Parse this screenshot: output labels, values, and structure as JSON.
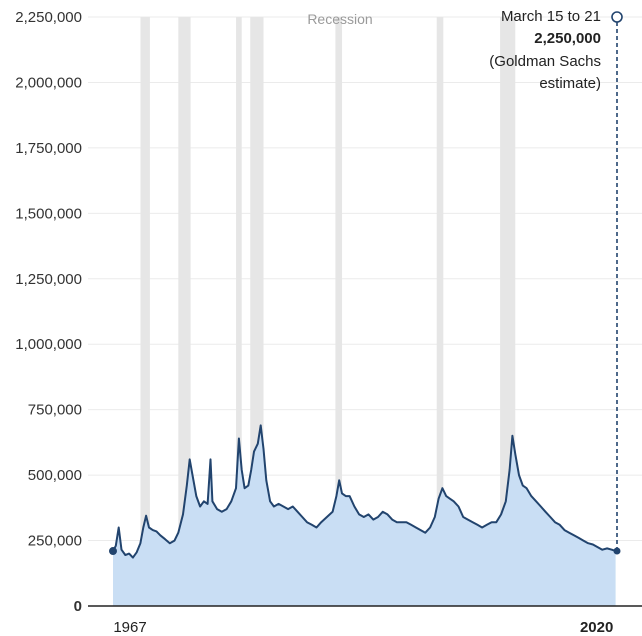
{
  "chart_data": {
    "type": "area",
    "title": "",
    "xlabel": "",
    "ylabel": "",
    "ylim": [
      0,
      2250000
    ],
    "xlim": [
      1967,
      2020.25
    ],
    "y_ticks": [
      0,
      250000,
      500000,
      750000,
      1000000,
      1250000,
      1500000,
      1750000,
      2000000,
      2250000
    ],
    "y_tick_labels": [
      "0",
      "250,000",
      "500,000",
      "750,000",
      "1,000,000",
      "1,250,000",
      "1,500,000",
      "1,750,000",
      "2,000,000",
      "2,250,000"
    ],
    "x_tick_labels": [
      {
        "value": 1967,
        "label": "1967"
      },
      {
        "value": 2020,
        "label": "2020"
      }
    ],
    "grid": true,
    "recession_label": "Recession",
    "recessions": [
      [
        1969.9,
        1970.9
      ],
      [
        1973.9,
        1975.2
      ],
      [
        1980.0,
        1980.6
      ],
      [
        1981.5,
        1982.9
      ],
      [
        1990.5,
        1991.2
      ],
      [
        2001.2,
        2001.9
      ],
      [
        2007.9,
        2009.5
      ]
    ],
    "series": [
      {
        "values": [
          [
            1967.0,
            210000
          ],
          [
            1967.3,
            230000
          ],
          [
            1967.6,
            300000
          ],
          [
            1967.9,
            215000
          ],
          [
            1968.3,
            195000
          ],
          [
            1968.7,
            200000
          ],
          [
            1969.1,
            185000
          ],
          [
            1969.5,
            205000
          ],
          [
            1969.9,
            240000
          ],
          [
            1970.2,
            300000
          ],
          [
            1970.5,
            345000
          ],
          [
            1970.8,
            300000
          ],
          [
            1971.2,
            290000
          ],
          [
            1971.6,
            285000
          ],
          [
            1972.0,
            270000
          ],
          [
            1972.5,
            255000
          ],
          [
            1973.0,
            240000
          ],
          [
            1973.5,
            250000
          ],
          [
            1973.9,
            280000
          ],
          [
            1974.4,
            350000
          ],
          [
            1974.8,
            460000
          ],
          [
            1975.1,
            560000
          ],
          [
            1975.4,
            500000
          ],
          [
            1975.8,
            420000
          ],
          [
            1976.2,
            380000
          ],
          [
            1976.6,
            400000
          ],
          [
            1977.0,
            390000
          ],
          [
            1977.3,
            560000
          ],
          [
            1977.5,
            400000
          ],
          [
            1978.0,
            370000
          ],
          [
            1978.5,
            360000
          ],
          [
            1979.0,
            370000
          ],
          [
            1979.5,
            400000
          ],
          [
            1980.0,
            450000
          ],
          [
            1980.3,
            640000
          ],
          [
            1980.6,
            520000
          ],
          [
            1980.9,
            450000
          ],
          [
            1981.3,
            460000
          ],
          [
            1981.6,
            520000
          ],
          [
            1981.9,
            590000
          ],
          [
            1982.3,
            620000
          ],
          [
            1982.6,
            690000
          ],
          [
            1982.9,
            600000
          ],
          [
            1983.2,
            480000
          ],
          [
            1983.6,
            400000
          ],
          [
            1984.0,
            380000
          ],
          [
            1984.5,
            390000
          ],
          [
            1985.0,
            380000
          ],
          [
            1985.5,
            370000
          ],
          [
            1986.0,
            380000
          ],
          [
            1986.5,
            360000
          ],
          [
            1987.0,
            340000
          ],
          [
            1987.5,
            320000
          ],
          [
            1988.0,
            310000
          ],
          [
            1988.5,
            300000
          ],
          [
            1989.0,
            320000
          ],
          [
            1989.6,
            340000
          ],
          [
            1990.2,
            360000
          ],
          [
            1990.6,
            420000
          ],
          [
            1990.9,
            480000
          ],
          [
            1991.2,
            430000
          ],
          [
            1991.6,
            420000
          ],
          [
            1992.0,
            420000
          ],
          [
            1992.5,
            380000
          ],
          [
            1993.0,
            350000
          ],
          [
            1993.5,
            340000
          ],
          [
            1994.0,
            350000
          ],
          [
            1994.5,
            330000
          ],
          [
            1995.0,
            340000
          ],
          [
            1995.5,
            360000
          ],
          [
            1996.0,
            350000
          ],
          [
            1996.5,
            330000
          ],
          [
            1997.0,
            320000
          ],
          [
            1997.5,
            320000
          ],
          [
            1998.0,
            320000
          ],
          [
            1998.5,
            310000
          ],
          [
            1999.0,
            300000
          ],
          [
            1999.5,
            290000
          ],
          [
            2000.0,
            280000
          ],
          [
            2000.5,
            300000
          ],
          [
            2001.0,
            340000
          ],
          [
            2001.4,
            410000
          ],
          [
            2001.8,
            450000
          ],
          [
            2002.2,
            420000
          ],
          [
            2002.6,
            410000
          ],
          [
            2003.0,
            400000
          ],
          [
            2003.5,
            380000
          ],
          [
            2004.0,
            340000
          ],
          [
            2004.5,
            330000
          ],
          [
            2005.0,
            320000
          ],
          [
            2005.5,
            310000
          ],
          [
            2006.0,
            300000
          ],
          [
            2006.5,
            310000
          ],
          [
            2007.0,
            320000
          ],
          [
            2007.5,
            320000
          ],
          [
            2008.0,
            350000
          ],
          [
            2008.5,
            400000
          ],
          [
            2008.9,
            520000
          ],
          [
            2009.2,
            650000
          ],
          [
            2009.5,
            580000
          ],
          [
            2009.9,
            500000
          ],
          [
            2010.3,
            460000
          ],
          [
            2010.7,
            450000
          ],
          [
            2011.2,
            420000
          ],
          [
            2011.7,
            400000
          ],
          [
            2012.2,
            380000
          ],
          [
            2012.7,
            360000
          ],
          [
            2013.2,
            340000
          ],
          [
            2013.7,
            320000
          ],
          [
            2014.2,
            310000
          ],
          [
            2014.7,
            290000
          ],
          [
            2015.2,
            280000
          ],
          [
            2015.7,
            270000
          ],
          [
            2016.2,
            260000
          ],
          [
            2016.7,
            250000
          ],
          [
            2017.2,
            240000
          ],
          [
            2017.7,
            235000
          ],
          [
            2018.2,
            225000
          ],
          [
            2018.7,
            215000
          ],
          [
            2019.2,
            220000
          ],
          [
            2019.7,
            215000
          ],
          [
            2020.1,
            210000
          ]
        ]
      }
    ],
    "annotation": {
      "date_label": "March 15 to 21",
      "value_label": "2,250,000",
      "source_line1": "(Goldman Sachs",
      "source_line2": "estimate)",
      "x": 2020.25,
      "y": 2250000
    },
    "colors": {
      "line": "#22446e",
      "area": "#c9def4",
      "recession": "#e6e6e6",
      "grid": "#ebebeb",
      "axis": "#222222"
    }
  }
}
